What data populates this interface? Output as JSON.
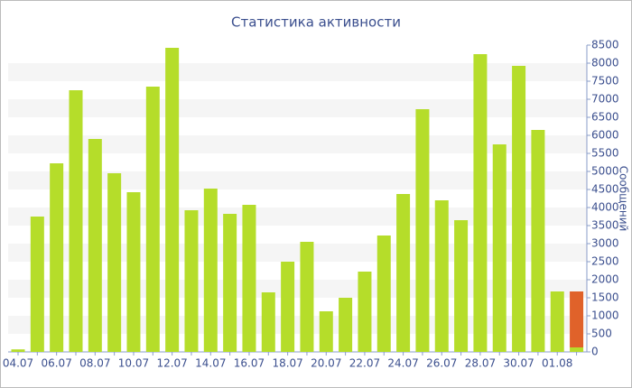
{
  "chart_data": {
    "type": "bar",
    "title": "Статистика активности",
    "y_label": "Сообщений",
    "categories": [
      "04.07",
      null,
      "06.07",
      null,
      "08.07",
      null,
      "10.07",
      null,
      "12.07",
      null,
      "14.07",
      null,
      "16.07",
      null,
      "18.07",
      null,
      "20.07",
      null,
      "22.07",
      null,
      "24.07",
      null,
      "26.07",
      null,
      "28.07",
      null,
      "30.07",
      null,
      "01.08",
      null
    ],
    "series": [
      {
        "color": "#b5dd2a",
        "values": [
          70,
          3750,
          5225,
          7250,
          5900,
          4950,
          4425,
          7350,
          8425,
          3925,
          4525,
          3825,
          4075,
          1650,
          2500,
          3050,
          1125,
          1500,
          2225,
          3225,
          4375,
          6725,
          4200,
          3650,
          8250,
          5750,
          7925,
          6150,
          1675,
          125
        ]
      },
      {
        "color": "#e0622a",
        "values": [
          null,
          null,
          null,
          null,
          null,
          null,
          null,
          null,
          null,
          null,
          null,
          null,
          null,
          null,
          null,
          null,
          null,
          null,
          null,
          null,
          null,
          null,
          null,
          null,
          null,
          null,
          null,
          null,
          null,
          1550
        ]
      }
    ],
    "stacked": true,
    "ylim": [
      0,
      8500
    ],
    "yticks": [
      0,
      500,
      1000,
      1500,
      2000,
      2500,
      3000,
      3500,
      4000,
      4500,
      5000,
      5500,
      6000,
      6500,
      7000,
      7500,
      8000,
      8500
    ],
    "grid": true
  }
}
